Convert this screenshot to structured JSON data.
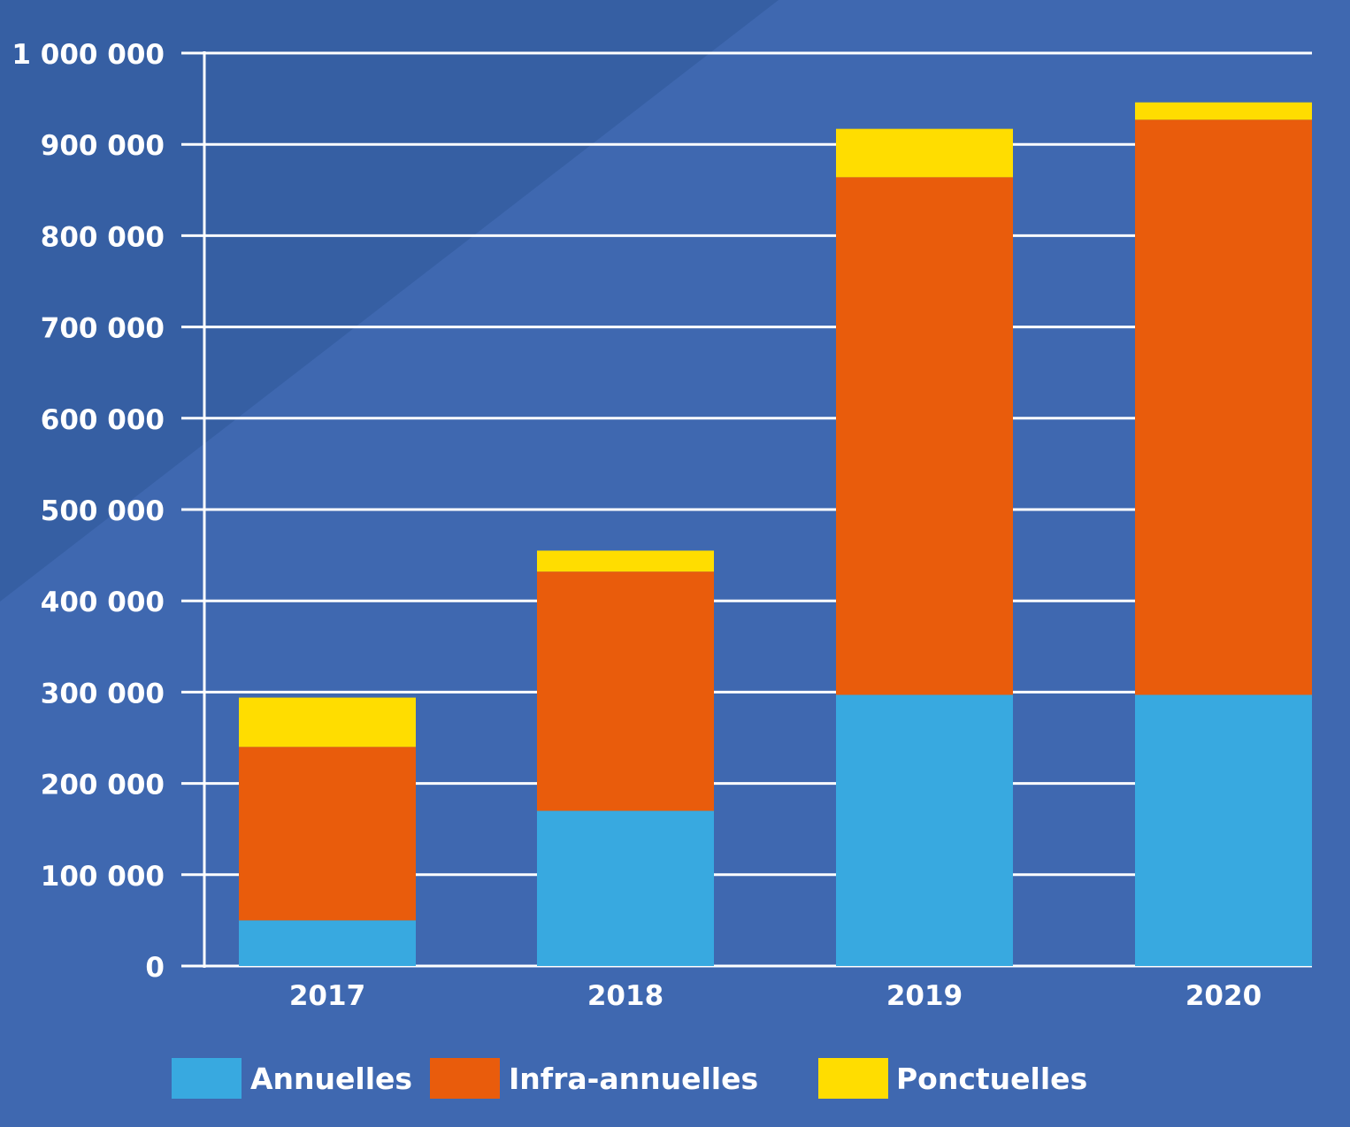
{
  "colors": {
    "background": "#3f68b0",
    "background_band": "#365fa3",
    "grid": "#ffffff",
    "annuelles": "#38a9e0",
    "infra": "#e95c0c",
    "ponctuelles": "#ffdd00"
  },
  "chart_data": {
    "type": "bar",
    "stacked": true,
    "categories": [
      "2017",
      "2018",
      "2019",
      "2020"
    ],
    "series": [
      {
        "name": "Annuelles",
        "color": "#38a9e0",
        "values": [
          50000,
          170000,
          297000,
          297000
        ]
      },
      {
        "name": "Infra-annuelles",
        "color": "#e95c0c",
        "values": [
          190000,
          262000,
          567000,
          630000
        ]
      },
      {
        "name": "Ponctuelles",
        "color": "#ffdd00",
        "values": [
          54000,
          23000,
          53000,
          19000
        ]
      }
    ],
    "y_ticks": [
      "0",
      "100 000",
      "200 000",
      "300 000",
      "400 000",
      "500 000",
      "600 000",
      "700 000",
      "800 000",
      "900 000",
      "1 000 000"
    ],
    "ylim": [
      0,
      1000000
    ],
    "grid": true,
    "legend_position": "bottom"
  }
}
